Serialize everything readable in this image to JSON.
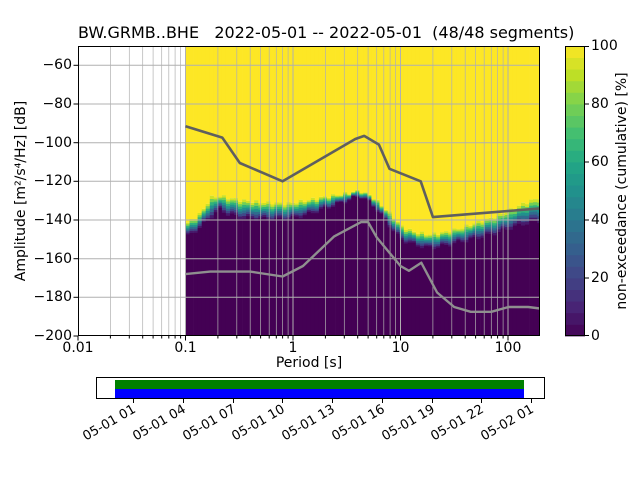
{
  "title": "BW.GRMB..BHE   2022-05-01 -- 2022-05-01  (48/48 segments)",
  "axes": {
    "xlabel": "Period [s]",
    "ylabel": "Amplitude [m²/s⁴/Hz] [dB]"
  },
  "colorbar_label": "non-exceedance (cumulative) [%]",
  "chart_data": {
    "type": "heatmap",
    "subtype": "ppsd-cumulative-histogram",
    "station": "BW.GRMB..BHE",
    "date_range": "2022-05-01 -- 2022-05-01",
    "segments": "48/48",
    "xlabel": "Period [s]",
    "ylabel": "Amplitude [m²/s⁴/Hz] [dB]",
    "xscale": "log",
    "xlim": [
      0.01,
      200
    ],
    "ylim": [
      -200,
      -50
    ],
    "xticks": [
      0.01,
      0.1,
      1,
      10,
      100
    ],
    "xtick_labels": [
      "0.01",
      "0.1",
      "1",
      "10",
      "100"
    ],
    "yticks": [
      -60,
      -80,
      -100,
      -120,
      -140,
      -160,
      -180,
      -200
    ],
    "ytick_labels": [
      "−60",
      "−80",
      "−100",
      "−120",
      "−140",
      "−160",
      "−180",
      "−200"
    ],
    "grid": true,
    "data_period_range": [
      0.1,
      195
    ],
    "histogram_colors": {
      "max": "#fde725",
      "min": "#440154"
    },
    "colorbar": {
      "label": "non-exceedance (cumulative) [%]",
      "ticks": [
        0,
        20,
        40,
        60,
        80,
        100
      ],
      "tick_labels": [
        "0",
        "20",
        "40",
        "60",
        "80",
        "100"
      ],
      "colormap": "viridis",
      "colormap_stops": [
        [
          0,
          "#440154"
        ],
        [
          0.1,
          "#482475"
        ],
        [
          0.2,
          "#414487"
        ],
        [
          0.3,
          "#355f8d"
        ],
        [
          0.4,
          "#2a788e"
        ],
        [
          0.5,
          "#21918c"
        ],
        [
          0.6,
          "#22a884"
        ],
        [
          0.7,
          "#44bf70"
        ],
        [
          0.8,
          "#7ad151"
        ],
        [
          0.9,
          "#bddf26"
        ],
        [
          1,
          "#fde725"
        ]
      ]
    },
    "distribution_band": {
      "note": "per period: [period_s, dB top of transition (100% non-exceedance), dB bottom of transition (0%)]; yellow above, dark purple below",
      "points": [
        [
          0.1,
          -142,
          -149
        ],
        [
          0.115,
          -140,
          -147
        ],
        [
          0.135,
          -137,
          -144
        ],
        [
          0.155,
          -133,
          -141
        ],
        [
          0.168,
          -128.5,
          -139
        ],
        [
          0.21,
          -127.5,
          -134.5
        ],
        [
          0.25,
          -128.5,
          -137
        ],
        [
          0.35,
          -130,
          -139
        ],
        [
          0.55,
          -131,
          -139.5
        ],
        [
          0.9,
          -131.5,
          -139.5
        ],
        [
          1.3,
          -130,
          -137.5
        ],
        [
          2.0,
          -128,
          -134
        ],
        [
          3.0,
          -126.5,
          -130.5
        ],
        [
          4.2,
          -124.8,
          -127.5
        ],
        [
          5.5,
          -128,
          -132
        ],
        [
          7.0,
          -133.5,
          -139
        ],
        [
          8.5,
          -138,
          -145
        ],
        [
          10,
          -143,
          -150
        ],
        [
          13,
          -146,
          -152.5
        ],
        [
          18,
          -147.5,
          -154.5
        ],
        [
          25,
          -146.5,
          -153.5
        ],
        [
          35,
          -144.5,
          -151.5
        ],
        [
          50,
          -141.5,
          -149.5
        ],
        [
          70,
          -139,
          -147.5
        ],
        [
          100,
          -135.5,
          -144.5
        ],
        [
          140,
          -131.5,
          -142
        ],
        [
          195,
          -128.5,
          -140.5
        ]
      ]
    },
    "noise_models": {
      "color_high": "#5f5f5f",
      "color_low": "#8f8f8f",
      "nhnm": [
        [
          0.1,
          -91.5
        ],
        [
          0.22,
          -97.4
        ],
        [
          0.32,
          -110.5
        ],
        [
          0.8,
          -120.0
        ],
        [
          3.8,
          -98.1
        ],
        [
          4.6,
          -96.5
        ],
        [
          6.3,
          -101.0
        ],
        [
          7.9,
          -113.5
        ],
        [
          15.4,
          -120.0
        ],
        [
          20,
          -138.5
        ],
        [
          198,
          -134.0
        ]
      ],
      "nlnm": [
        [
          0.1,
          -168.0
        ],
        [
          0.17,
          -166.7
        ],
        [
          0.4,
          -166.7
        ],
        [
          0.8,
          -169.2
        ],
        [
          1.24,
          -163.8
        ],
        [
          2.4,
          -148.6
        ],
        [
          4.3,
          -141.1
        ],
        [
          5.0,
          -141.1
        ],
        [
          6.0,
          -149.0
        ],
        [
          10.0,
          -163.8
        ],
        [
          12.0,
          -166.3
        ],
        [
          15.6,
          -162.1
        ],
        [
          21.9,
          -177.5
        ],
        [
          31.6,
          -185.0
        ],
        [
          45,
          -187.5
        ],
        [
          70,
          -187.5
        ],
        [
          101,
          -185.0
        ],
        [
          154,
          -185.0
        ],
        [
          198,
          -185.8
        ]
      ]
    }
  },
  "coverage": {
    "tick_labels": [
      "05-01 01",
      "05-01 04",
      "05-01 07",
      "05-01 10",
      "05-01 13",
      "05-01 16",
      "05-01 19",
      "05-01 22",
      "05-02 01"
    ],
    "segment_bar_color": "#008000",
    "data_bar_color": "#0000ff"
  }
}
